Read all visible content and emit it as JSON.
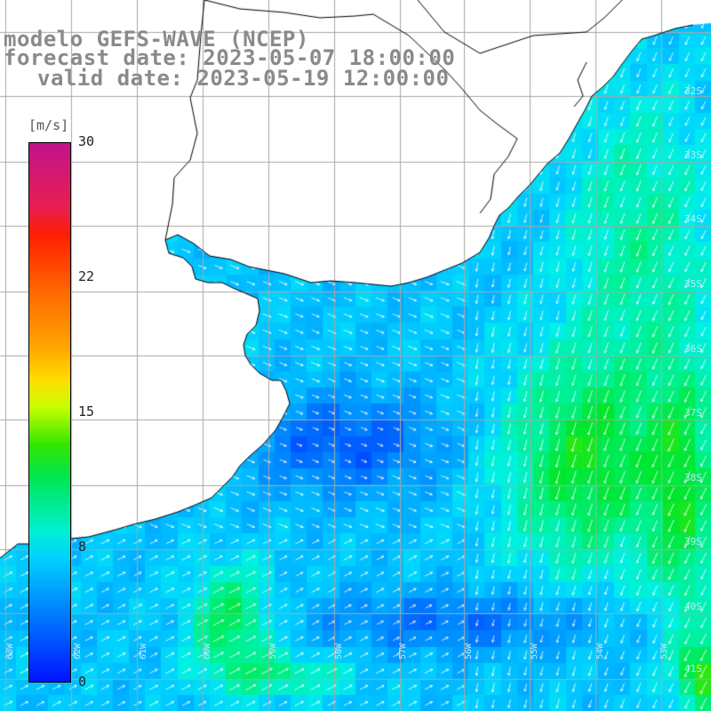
{
  "title": {
    "line1": "modelo GEFS-WAVE (NCEP)",
    "line2": "forecast date: 2023-05-07 18:00:00",
    "line3": "valid date: 2023-05-19 12:00:00"
  },
  "colorbar": {
    "unit": "[m/s]",
    "ticks": [
      "30",
      "22",
      "15",
      "8",
      "0"
    ],
    "colors_top_to_bottom": [
      "#c0148c",
      "#ff1e00",
      "#ffa000",
      "#ffdc00",
      "#32e600",
      "#00f0d2",
      "#00d2ff",
      "#0078ff",
      "#0014ff"
    ]
  },
  "map": {
    "land_color": "#ffffff",
    "grid_color": "#aaaaaa",
    "coastline_color": "#000000",
    "arrow_color": "#ffffff",
    "latitude_labels": [
      "32S",
      "33S",
      "34S",
      "35S",
      "36S",
      "37S",
      "38S",
      "39S",
      "40S",
      "41S"
    ],
    "longitude_labels": [
      "63W",
      "62W",
      "61W",
      "60W",
      "59W",
      "58W",
      "57W",
      "56W",
      "55W",
      "54W",
      "53W"
    ]
  }
}
